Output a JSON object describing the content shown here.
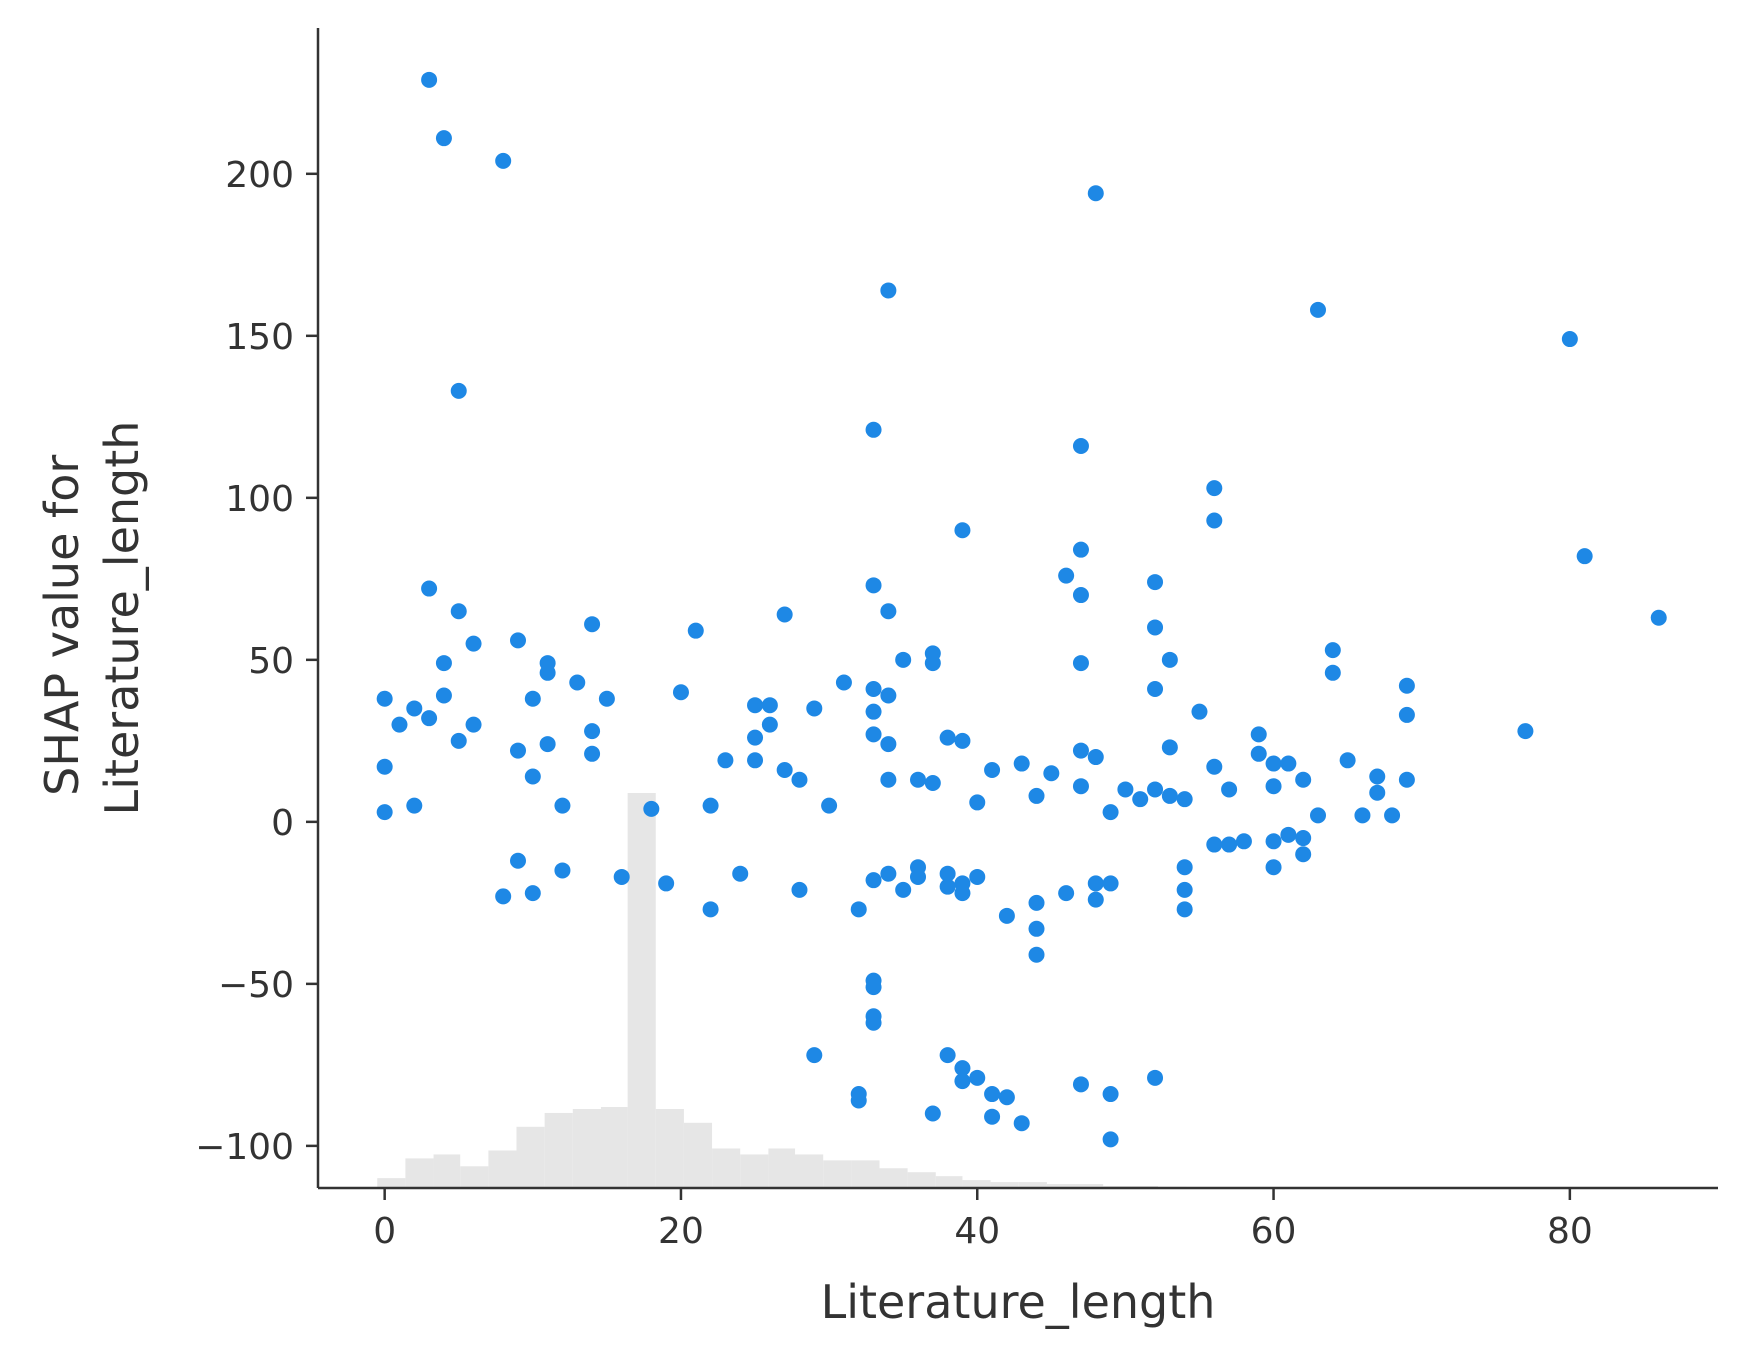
{
  "chart_data": {
    "type": "scatter",
    "title": "",
    "xlabel": "Literature_length",
    "ylabel_lines": [
      "SHAP value for",
      "Literature_length"
    ],
    "xlim": [
      -4.5,
      90
    ],
    "ylim": [
      -113,
      245
    ],
    "xticks": [
      0,
      20,
      40,
      60,
      80
    ],
    "yticks": [
      -100,
      -50,
      0,
      50,
      100,
      150,
      200
    ],
    "xtick_labels": [
      "0",
      "20",
      "40",
      "60",
      "80"
    ],
    "ytick_labels": [
      "−100",
      "−50",
      "0",
      "50",
      "100",
      "150",
      "200"
    ],
    "grid": false,
    "point_color": "#1e88e5",
    "histogram_color": "#e6e6e6",
    "histogram": {
      "bin_edges": [
        -0.5,
        1.4,
        3.3,
        5.1,
        7,
        8.9,
        10.8,
        12.7,
        14.6,
        16.4,
        18.3,
        20.2,
        22.1,
        24,
        25.9,
        27.7,
        29.6,
        31.5,
        33.4,
        35.3,
        37.2,
        39,
        40.9,
        42.8,
        44.7,
        46.6,
        48.5,
        50.4,
        52.2,
        54.1,
        56,
        57.9
      ],
      "relative_heights": [
        0.025,
        0.075,
        0.085,
        0.055,
        0.095,
        0.155,
        0.19,
        0.2,
        0.205,
        1.0,
        0.2,
        0.165,
        0.1,
        0.085,
        0.1,
        0.085,
        0.07,
        0.07,
        0.05,
        0.04,
        0.03,
        0.02,
        0.015,
        0.015,
        0.01,
        0.01,
        0.005,
        0.005,
        0.003,
        0.002,
        0.002
      ]
    },
    "series": [
      {
        "points": [
          [
            3,
            229
          ],
          [
            4,
            211
          ],
          [
            8,
            204
          ],
          [
            48,
            194
          ],
          [
            34,
            164
          ],
          [
            63,
            158
          ],
          [
            80,
            149
          ],
          [
            5,
            133
          ],
          [
            33,
            121
          ],
          [
            47,
            116
          ],
          [
            56,
            103
          ],
          [
            56,
            93
          ],
          [
            39,
            90
          ],
          [
            47,
            84
          ],
          [
            81,
            82
          ],
          [
            46,
            76
          ],
          [
            52,
            74
          ],
          [
            3,
            72
          ],
          [
            33,
            73
          ],
          [
            47,
            70
          ],
          [
            5,
            65
          ],
          [
            34,
            65
          ],
          [
            27,
            64
          ],
          [
            86,
            63
          ],
          [
            14,
            61
          ],
          [
            52,
            60
          ],
          [
            21,
            59
          ],
          [
            9,
            56
          ],
          [
            6,
            55
          ],
          [
            64,
            53
          ],
          [
            37,
            52
          ],
          [
            53,
            50
          ],
          [
            11,
            49
          ],
          [
            35,
            50
          ],
          [
            37,
            49
          ],
          [
            47,
            49
          ],
          [
            4,
            49
          ],
          [
            64,
            46
          ],
          [
            11,
            46
          ],
          [
            13,
            43
          ],
          [
            31,
            43
          ],
          [
            69,
            42
          ],
          [
            52,
            41
          ],
          [
            33,
            41
          ],
          [
            20,
            40
          ],
          [
            34,
            39
          ],
          [
            0,
            38
          ],
          [
            10,
            38
          ],
          [
            15,
            38
          ],
          [
            4,
            39
          ],
          [
            2,
            35
          ],
          [
            29,
            35
          ],
          [
            25,
            36
          ],
          [
            26,
            36
          ],
          [
            55,
            34
          ],
          [
            69,
            33
          ],
          [
            33,
            34
          ],
          [
            1,
            30
          ],
          [
            3,
            32
          ],
          [
            6,
            30
          ],
          [
            14,
            28
          ],
          [
            77,
            28
          ],
          [
            26,
            30
          ],
          [
            59,
            27
          ],
          [
            33,
            27
          ],
          [
            38,
            26
          ],
          [
            39,
            25
          ],
          [
            25,
            26
          ],
          [
            5,
            25
          ],
          [
            11,
            24
          ],
          [
            34,
            24
          ],
          [
            53,
            23
          ],
          [
            47,
            22
          ],
          [
            9,
            22
          ],
          [
            14,
            21
          ],
          [
            59,
            21
          ],
          [
            48,
            20
          ],
          [
            23,
            19
          ],
          [
            25,
            19
          ],
          [
            65,
            19
          ],
          [
            43,
            18
          ],
          [
            60,
            18
          ],
          [
            61,
            18
          ],
          [
            0,
            17
          ],
          [
            56,
            17
          ],
          [
            41,
            16
          ],
          [
            27,
            16
          ],
          [
            45,
            15
          ],
          [
            67,
            14
          ],
          [
            10,
            14
          ],
          [
            62,
            13
          ],
          [
            69,
            13
          ],
          [
            28,
            13
          ],
          [
            34,
            13
          ],
          [
            36,
            13
          ],
          [
            37,
            12
          ],
          [
            47,
            11
          ],
          [
            60,
            11
          ],
          [
            52,
            10
          ],
          [
            57,
            10
          ],
          [
            50,
            10
          ],
          [
            67,
            9
          ],
          [
            44,
            8
          ],
          [
            53,
            8
          ],
          [
            54,
            7
          ],
          [
            51,
            7
          ],
          [
            40,
            6
          ],
          [
            2,
            5
          ],
          [
            12,
            5
          ],
          [
            22,
            5
          ],
          [
            30,
            5
          ],
          [
            18,
            4
          ],
          [
            0,
            3
          ],
          [
            49,
            3
          ],
          [
            63,
            2
          ],
          [
            66,
            2
          ],
          [
            68,
            2
          ],
          [
            58,
            -6
          ],
          [
            60,
            -6
          ],
          [
            61,
            -4
          ],
          [
            62,
            -5
          ],
          [
            62,
            -10
          ],
          [
            60,
            -14
          ],
          [
            56,
            -7
          ],
          [
            57,
            -7
          ],
          [
            54,
            -14
          ],
          [
            54,
            -21
          ],
          [
            54,
            -27
          ],
          [
            48,
            -19
          ],
          [
            49,
            -19
          ],
          [
            48,
            -24
          ],
          [
            46,
            -22
          ],
          [
            44,
            -25
          ],
          [
            44,
            -33
          ],
          [
            44,
            -41
          ],
          [
            42,
            -29
          ],
          [
            39,
            -19
          ],
          [
            39,
            -22
          ],
          [
            40,
            -17
          ],
          [
            38,
            -16
          ],
          [
            38,
            -20
          ],
          [
            36,
            -14
          ],
          [
            36,
            -17
          ],
          [
            35,
            -21
          ],
          [
            32,
            -27
          ],
          [
            33,
            -18
          ],
          [
            34,
            -16
          ],
          [
            28,
            -21
          ],
          [
            24,
            -16
          ],
          [
            22,
            -27
          ],
          [
            19,
            -19
          ],
          [
            16,
            -17
          ],
          [
            8,
            -23
          ],
          [
            10,
            -22
          ],
          [
            12,
            -15
          ],
          [
            9,
            -12
          ],
          [
            33,
            -49
          ],
          [
            33,
            -51
          ],
          [
            33,
            -60
          ],
          [
            33,
            -62
          ],
          [
            29,
            -72
          ],
          [
            38,
            -72
          ],
          [
            39,
            -76
          ],
          [
            39,
            -80
          ],
          [
            40,
            -79
          ],
          [
            41,
            -84
          ],
          [
            42,
            -85
          ],
          [
            32,
            -84
          ],
          [
            32,
            -86
          ],
          [
            37,
            -90
          ],
          [
            41,
            -91
          ],
          [
            43,
            -93
          ],
          [
            47,
            -81
          ],
          [
            49,
            -84
          ],
          [
            52,
            -79
          ],
          [
            49,
            -98
          ]
        ]
      }
    ]
  }
}
